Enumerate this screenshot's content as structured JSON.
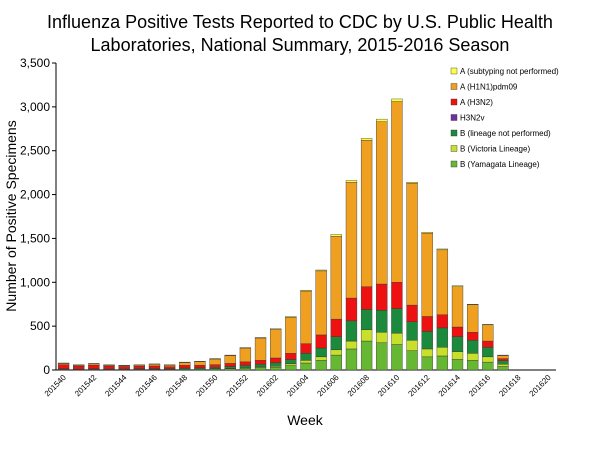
{
  "chart_data": {
    "type": "stacked-bar",
    "title": [
      "Influenza Positive Tests Reported to CDC by U.S. Public Health",
      "Laboratories, National Summary, 2015-2016 Season"
    ],
    "x_label": "Week",
    "y_label": "Number of Positive Specimens",
    "categories": [
      "201540",
      null,
      "201542",
      null,
      "201544",
      null,
      "201546",
      null,
      "201548",
      null,
      "201550",
      null,
      "201552",
      null,
      "201602",
      null,
      "201604",
      null,
      "201606",
      null,
      "201608",
      null,
      "201610",
      null,
      "201612",
      null,
      "201614",
      null,
      "201616",
      null,
      "201618",
      null,
      "201620"
    ],
    "series": [
      {
        "name": "A (subtyping not performed)",
        "color": "#ffff40",
        "values": [
          5,
          5,
          5,
          5,
          5,
          5,
          5,
          5,
          5,
          5,
          5,
          5,
          5,
          5,
          8,
          10,
          10,
          10,
          20,
          20,
          20,
          30,
          30,
          10,
          10,
          10,
          10,
          5,
          5,
          5,
          0,
          0,
          0
        ]
      },
      {
        "name": "A (H1N1)pdm09",
        "color": "#f0a020",
        "values": [
          15,
          10,
          15,
          10,
          10,
          13,
          19,
          17,
          32,
          40,
          64,
          90,
          157,
          255,
          325,
          410,
          600,
          730,
          945,
          1320,
          1670,
          1850,
          2060,
          1390,
          950,
          740,
          460,
          315,
          185,
          35,
          0,
          0,
          0
        ]
      },
      {
        "name": "A (H3N2)",
        "color": "#ee1111",
        "values": [
          45,
          35,
          40,
          33,
          28,
          28,
          30,
          23,
          30,
          30,
          30,
          35,
          40,
          45,
          55,
          70,
          110,
          150,
          200,
          260,
          260,
          300,
          300,
          190,
          170,
          150,
          110,
          90,
          70,
          25,
          0,
          0,
          0
        ]
      },
      {
        "name": "H3N2v",
        "color": "#7030a0",
        "values": [
          0,
          0,
          0,
          0,
          0,
          0,
          0,
          0,
          0,
          0,
          0,
          0,
          0,
          0,
          0,
          0,
          0,
          0,
          0,
          0,
          0,
          0,
          0,
          0,
          0,
          0,
          0,
          0,
          0,
          0,
          0,
          0,
          0
        ]
      },
      {
        "name": "B (lineage not performed)",
        "color": "#1b8a3c",
        "values": [
          8,
          5,
          8,
          6,
          6,
          7,
          8,
          8,
          12,
          12,
          15,
          20,
          25,
          30,
          40,
          50,
          80,
          100,
          150,
          230,
          230,
          250,
          280,
          210,
          200,
          220,
          170,
          150,
          110,
          40,
          0,
          0,
          0
        ]
      },
      {
        "name": "B (Victoria Lineage)",
        "color": "#c8e02c",
        "values": [
          2,
          2,
          2,
          2,
          2,
          2,
          2,
          2,
          3,
          3,
          4,
          5,
          8,
          10,
          12,
          20,
          30,
          40,
          60,
          90,
          130,
          120,
          130,
          120,
          90,
          100,
          90,
          80,
          60,
          25,
          0,
          0,
          0
        ]
      },
      {
        "name": "B (Yamagata Lineage)",
        "color": "#66b832",
        "values": [
          5,
          3,
          5,
          4,
          4,
          5,
          6,
          5,
          8,
          10,
          12,
          15,
          20,
          25,
          30,
          50,
          80,
          110,
          170,
          240,
          330,
          310,
          290,
          220,
          150,
          160,
          120,
          110,
          90,
          40,
          0,
          0,
          0
        ]
      }
    ],
    "ylim": [
      0,
      3500
    ],
    "yticks": [
      0,
      500,
      {
        "value": 1000,
        "label": "1,000"
      },
      {
        "value": 1500,
        "label": "1,500"
      },
      {
        "value": 2000,
        "label": "2,000"
      },
      {
        "value": 2500,
        "label": "2,500"
      },
      {
        "value": 3000,
        "label": "3,000"
      },
      {
        "value": 3500,
        "label": "3,500"
      }
    ],
    "legend": "upper-right"
  }
}
